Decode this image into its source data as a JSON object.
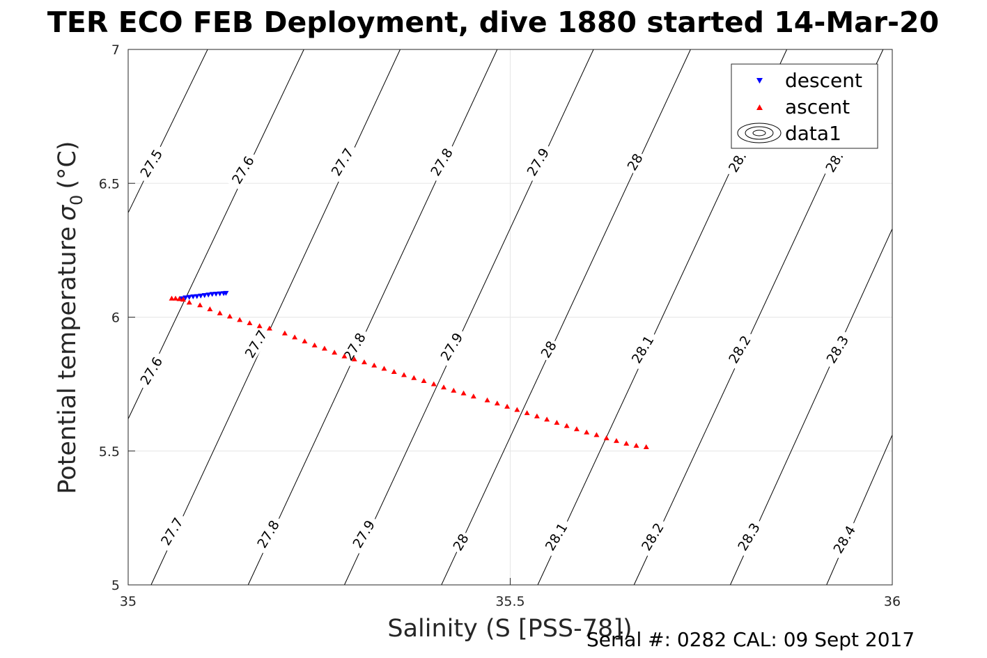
{
  "chart_data": {
    "type": "scatter",
    "title": "TER ECO FEB Deployment, dive 1880 started 14-Mar-20",
    "xlabel": "Salinity (S [PSS-78])",
    "ylabel_main": "Potential temperature",
    "ylabel_symbol": "σ",
    "ylabel_subscript": "0",
    "ylabel_unit": "(°C)",
    "xlim": [
      35,
      36
    ],
    "ylim": [
      5,
      7
    ],
    "x_ticks": [
      "35",
      "35.5",
      "36"
    ],
    "y_ticks": [
      "5",
      "5.5",
      "6",
      "6.5",
      "7"
    ],
    "grid": true,
    "legend_position": "top-right",
    "legend": [
      {
        "label": "descent",
        "marker": "triangle-down",
        "color": "#0000ff"
      },
      {
        "label": "ascent",
        "marker": "triangle-up",
        "color": "#ff0000"
      },
      {
        "label": "data1",
        "marker": "contour",
        "color": "#000000"
      }
    ],
    "series": [
      {
        "name": "descent",
        "color": "#0000ff",
        "marker": "triangle-down",
        "points": [
          [
            35.07,
            6.07
          ],
          [
            35.075,
            6.073
          ],
          [
            35.08,
            6.075
          ],
          [
            35.085,
            6.077
          ],
          [
            35.09,
            6.078
          ],
          [
            35.095,
            6.08
          ],
          [
            35.1,
            6.082
          ],
          [
            35.105,
            6.084
          ],
          [
            35.11,
            6.086
          ],
          [
            35.115,
            6.087
          ],
          [
            35.12,
            6.088
          ],
          [
            35.125,
            6.089
          ],
          [
            35.128,
            6.09
          ]
        ]
      },
      {
        "name": "ascent",
        "color": "#ff0000",
        "marker": "triangle-up",
        "points": [
          [
            35.057,
            6.07
          ],
          [
            35.062,
            6.07
          ],
          [
            35.067,
            6.068
          ],
          [
            35.072,
            6.066
          ],
          [
            35.08,
            6.055
          ],
          [
            35.094,
            6.045
          ],
          [
            35.107,
            6.03
          ],
          [
            35.12,
            6.015
          ],
          [
            35.133,
            6.003
          ],
          [
            35.146,
            5.99
          ],
          [
            35.159,
            5.978
          ],
          [
            35.172,
            5.967
          ],
          [
            35.185,
            5.958
          ],
          [
            35.205,
            5.94
          ],
          [
            35.218,
            5.925
          ],
          [
            35.231,
            5.91
          ],
          [
            35.244,
            5.895
          ],
          [
            35.257,
            5.883
          ],
          [
            35.27,
            5.868
          ],
          [
            35.283,
            5.854
          ],
          [
            35.296,
            5.843
          ],
          [
            35.309,
            5.832
          ],
          [
            35.322,
            5.82
          ],
          [
            35.335,
            5.808
          ],
          [
            35.348,
            5.796
          ],
          [
            35.361,
            5.784
          ],
          [
            35.374,
            5.773
          ],
          [
            35.387,
            5.762
          ],
          [
            35.4,
            5.75
          ],
          [
            35.413,
            5.738
          ],
          [
            35.426,
            5.726
          ],
          [
            35.439,
            5.716
          ],
          [
            35.452,
            5.704
          ],
          [
            35.47,
            5.69
          ],
          [
            35.483,
            5.678
          ],
          [
            35.496,
            5.666
          ],
          [
            35.509,
            5.654
          ],
          [
            35.522,
            5.642
          ],
          [
            35.535,
            5.63
          ],
          [
            35.548,
            5.618
          ],
          [
            35.561,
            5.606
          ],
          [
            35.574,
            5.594
          ],
          [
            35.587,
            5.582
          ],
          [
            35.6,
            5.57
          ],
          [
            35.613,
            5.56
          ],
          [
            35.626,
            5.548
          ],
          [
            35.639,
            5.538
          ],
          [
            35.652,
            5.528
          ],
          [
            35.665,
            5.52
          ],
          [
            35.678,
            5.515
          ]
        ]
      }
    ],
    "contours": [
      {
        "label": "27.5",
        "p1": [
          35,
          6.39
        ],
        "p2": [
          35.104,
          7
        ]
      },
      {
        "label": "27.6",
        "p1": [
          35,
          5.62
        ],
        "p2": [
          35.23,
          7
        ]
      },
      {
        "label": "27.7",
        "p1": [
          35.03,
          5
        ],
        "p2": [
          35.356,
          7
        ]
      },
      {
        "label": "27.8",
        "p1": [
          35.157,
          5
        ],
        "p2": [
          35.483,
          7
        ]
      },
      {
        "label": "27.9",
        "p1": [
          35.283,
          5
        ],
        "p2": [
          35.609,
          7
        ]
      },
      {
        "label": "28",
        "p1": [
          35.41,
          5
        ],
        "p2": [
          35.736,
          7
        ]
      },
      {
        "label": "28.1",
        "p1": [
          35.536,
          5
        ],
        "p2": [
          35.862,
          7
        ]
      },
      {
        "label": "28.2",
        "p1": [
          35.662,
          5
        ],
        "p2": [
          35.988,
          7
        ]
      },
      {
        "label": "28.3",
        "p1": [
          35.788,
          5
        ],
        "p2": [
          36,
          6.33
        ]
      },
      {
        "label": "28.4",
        "p1": [
          35.914,
          5
        ],
        "p2": [
          36,
          5.56
        ]
      }
    ],
    "contour_labels": [
      {
        "text": "27.5",
        "at": [
          35.03,
          6.575
        ]
      },
      {
        "text": "27.6",
        "at": [
          35.15,
          6.55
        ]
      },
      {
        "text": "27.6",
        "at": [
          35.03,
          5.8
        ]
      },
      {
        "text": "27.7",
        "at": [
          35.28,
          6.58
        ]
      },
      {
        "text": "27.7",
        "at": [
          35.167,
          5.9
        ]
      },
      {
        "text": "27.7",
        "at": [
          35.057,
          5.2
        ]
      },
      {
        "text": "27.8",
        "at": [
          35.41,
          6.58
        ]
      },
      {
        "text": "27.8",
        "at": [
          35.296,
          5.89
        ]
      },
      {
        "text": "27.8",
        "at": [
          35.183,
          5.19
        ]
      },
      {
        "text": "27.9",
        "at": [
          35.536,
          6.58
        ]
      },
      {
        "text": "27.9",
        "at": [
          35.423,
          5.89
        ]
      },
      {
        "text": "27.9",
        "at": [
          35.308,
          5.19
        ]
      },
      {
        "text": "28",
        "at": [
          35.663,
          6.58
        ]
      },
      {
        "text": "28",
        "at": [
          35.55,
          5.88
        ]
      },
      {
        "text": "28",
        "at": [
          35.435,
          5.16
        ]
      },
      {
        "text": "28.1",
        "at": [
          35.673,
          5.88
        ]
      },
      {
        "text": "28.1",
        "at": [
          35.56,
          5.18
        ]
      },
      {
        "text": "28.2",
        "at": [
          35.8,
          5.88
        ]
      },
      {
        "text": "28.2",
        "at": [
          35.686,
          5.18
        ]
      },
      {
        "text": "28.3",
        "at": [
          35.928,
          5.88
        ]
      },
      {
        "text": "28.3",
        "at": [
          35.812,
          5.18
        ]
      },
      {
        "text": "28.4",
        "at": [
          35.937,
          5.17
        ]
      },
      {
        "text": "28.",
        "at": [
          35.797,
          6.58
        ]
      },
      {
        "text": "28.",
        "at": [
          35.924,
          6.58
        ]
      }
    ]
  },
  "footer": {
    "serial_text": "Serial #: 0282  CAL: 09 Sept 2017"
  }
}
